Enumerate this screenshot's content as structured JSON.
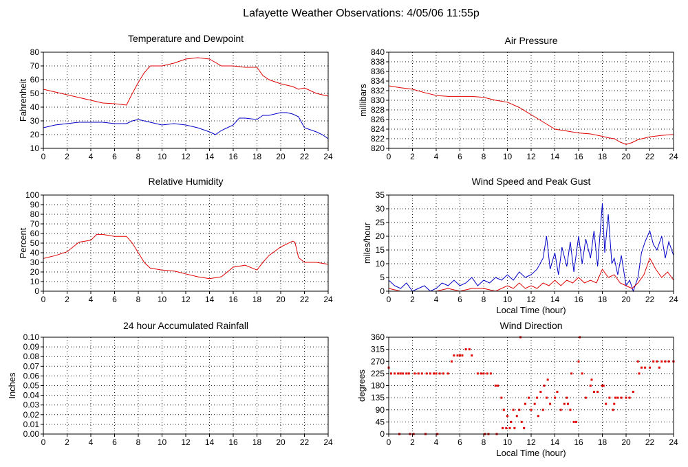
{
  "title": "Lafayette Weather Observations: 4/05/06 11:55p",
  "colors": {
    "red": "#e00000",
    "blue": "#0000c8"
  },
  "chart_data": [
    {
      "id": "temp",
      "type": "line",
      "title": "Temperature and Dewpoint",
      "xlabel": "",
      "ylabel": "Fahrenheit",
      "xlim": [
        0,
        24
      ],
      "ylim": [
        10,
        80
      ],
      "xticks": [
        0,
        2,
        4,
        6,
        8,
        10,
        12,
        14,
        16,
        18,
        20,
        22,
        24
      ],
      "yticks": [
        10,
        20,
        30,
        40,
        50,
        60,
        70,
        80
      ],
      "grid": true,
      "series": [
        {
          "color": "red",
          "x": [
            0,
            1,
            2,
            3,
            4,
            5,
            6,
            7,
            7.5,
            8,
            8.5,
            9,
            10,
            11,
            12,
            13,
            14,
            15,
            16,
            17,
            18,
            18.5,
            19,
            20,
            21,
            21.5,
            22,
            23,
            24
          ],
          "y": [
            53,
            51,
            49,
            47,
            45,
            43,
            42.5,
            41.5,
            50,
            58,
            65,
            70,
            70,
            72,
            75,
            76,
            75,
            70,
            70,
            69,
            69,
            63,
            60,
            57,
            55,
            53,
            54,
            50,
            48
          ]
        },
        {
          "color": "blue",
          "x": [
            0,
            1,
            2,
            3,
            4,
            5,
            6,
            7,
            7.5,
            8,
            8.5,
            9,
            10,
            11,
            12,
            13,
            14,
            14.5,
            15,
            15.5,
            16,
            16.5,
            17,
            18,
            18.5,
            19,
            20,
            20.5,
            21,
            21.5,
            22,
            23,
            23.5,
            24
          ],
          "y": [
            25,
            27,
            28,
            29,
            29,
            29,
            28,
            28,
            30,
            31,
            30,
            29,
            27,
            28,
            27,
            25,
            22,
            20,
            23,
            25,
            27,
            32,
            32,
            31,
            34,
            34,
            36,
            36,
            35,
            33,
            25,
            22,
            20,
            17
          ]
        }
      ]
    },
    {
      "id": "pressure",
      "type": "line",
      "title": "Air Pressure",
      "xlabel": "",
      "ylabel": "millibars",
      "xlim": [
        0,
        24
      ],
      "ylim": [
        820,
        840
      ],
      "xticks": [
        0,
        2,
        4,
        6,
        8,
        10,
        12,
        14,
        16,
        18,
        20,
        22,
        24
      ],
      "yticks": [
        820,
        822,
        824,
        826,
        828,
        830,
        832,
        834,
        836,
        838,
        840
      ],
      "grid": true,
      "series": [
        {
          "color": "red",
          "x": [
            0,
            1,
            2,
            3,
            4,
            5,
            6,
            7,
            8,
            9,
            10,
            11,
            12,
            13,
            14,
            15,
            16,
            17,
            18,
            18.5,
            19,
            19.5,
            20,
            20.5,
            21,
            22,
            23,
            24
          ],
          "y": [
            833,
            832.6,
            832.3,
            831.6,
            831,
            830.8,
            830.8,
            830.8,
            830.6,
            830,
            829.6,
            828.5,
            827,
            825.5,
            824,
            823.6,
            823.2,
            823,
            822.5,
            822.2,
            822,
            821.3,
            820.8,
            821.2,
            821.8,
            822.4,
            822.7,
            822.9
          ]
        }
      ]
    },
    {
      "id": "humidity",
      "type": "line",
      "title": "Relative Humidity",
      "xlabel": "",
      "ylabel": "Percent",
      "xlim": [
        0,
        24
      ],
      "ylim": [
        0,
        100
      ],
      "xticks": [
        0,
        2,
        4,
        6,
        8,
        10,
        12,
        14,
        16,
        18,
        20,
        22,
        24
      ],
      "yticks": [
        0,
        10,
        20,
        30,
        40,
        50,
        60,
        70,
        80,
        90,
        100
      ],
      "grid": true,
      "series": [
        {
          "color": "red",
          "x": [
            0,
            1,
            2,
            3,
            4,
            4.5,
            5,
            6,
            7,
            7.5,
            8,
            8.5,
            9,
            10,
            11,
            12,
            13,
            14,
            15,
            15.5,
            16,
            17,
            18,
            18.5,
            19,
            20,
            21,
            21.2,
            21.5,
            22,
            23,
            24
          ],
          "y": [
            34,
            37,
            41,
            51,
            53,
            59,
            59,
            57,
            57,
            50,
            40,
            30,
            24,
            22,
            21,
            18,
            15,
            13,
            15,
            20,
            25,
            27,
            22,
            30,
            37,
            46,
            52,
            51,
            35,
            30,
            30,
            28
          ]
        }
      ]
    },
    {
      "id": "wind",
      "type": "line",
      "title": "Wind Speed and Peak Gust",
      "xlabel": "Local Time (hour)",
      "ylabel": "miles/hour",
      "xlim": [
        0,
        24
      ],
      "ylim": [
        0,
        35
      ],
      "xticks": [
        0,
        2,
        4,
        6,
        8,
        10,
        12,
        14,
        16,
        18,
        20,
        22,
        24
      ],
      "yticks": [
        0,
        5,
        10,
        15,
        20,
        25,
        30,
        35
      ],
      "grid": true,
      "series": [
        {
          "color": "blue",
          "x": [
            0,
            0.5,
            1,
            1.5,
            2,
            2.5,
            3,
            3.5,
            4,
            4.5,
            5,
            5.5,
            6,
            6.5,
            7,
            7.5,
            8,
            8.5,
            9,
            9.5,
            10,
            10.5,
            11,
            11.5,
            12,
            12.5,
            13,
            13.3,
            13.6,
            14,
            14.3,
            14.6,
            15,
            15.3,
            15.6,
            16,
            16.3,
            16.6,
            17,
            17.3,
            17.6,
            18,
            18.2,
            18.5,
            18.8,
            19,
            19.3,
            19.6,
            20,
            20.3,
            20.6,
            21,
            21.3,
            21.6,
            22,
            22.3,
            22.6,
            23,
            23.3,
            23.6,
            24
          ],
          "y": [
            4,
            2,
            1,
            3,
            0,
            1,
            2,
            0,
            1,
            3,
            2,
            4,
            2,
            3,
            5,
            2,
            4,
            3,
            5,
            4,
            6,
            4,
            7,
            5,
            6,
            8,
            12,
            20,
            8,
            14,
            6,
            16,
            9,
            18,
            7,
            20,
            10,
            19,
            12,
            22,
            9,
            32,
            14,
            28,
            10,
            12,
            6,
            13,
            2,
            4,
            0,
            5,
            14,
            18,
            22,
            17,
            15,
            20,
            12,
            18,
            13
          ]
        },
        {
          "color": "red",
          "x": [
            0,
            1,
            2,
            3,
            4,
            5,
            6,
            7,
            8,
            9,
            10,
            10.5,
            11,
            11.5,
            12,
            12.5,
            13,
            13.5,
            14,
            14.5,
            15,
            15.5,
            16,
            16.5,
            17,
            17.5,
            18,
            18.5,
            19,
            19.5,
            20,
            20.5,
            21,
            21.5,
            22,
            22.5,
            23,
            23.5,
            24
          ],
          "y": [
            1,
            0,
            0,
            0,
            0,
            1,
            0,
            1,
            1,
            0,
            2,
            1,
            3,
            1,
            2,
            1,
            3,
            2,
            4,
            2,
            4,
            3,
            5,
            3,
            4,
            3,
            8,
            5,
            6,
            3,
            2,
            1,
            3,
            6,
            12,
            8,
            5,
            7,
            4
          ]
        }
      ]
    },
    {
      "id": "rain",
      "type": "line",
      "title": "24 hour Accumulated Rainfall",
      "xlabel": "",
      "ylabel": "Inches",
      "xlim": [
        0,
        24
      ],
      "ylim": [
        0,
        0.1
      ],
      "xticks": [
        0,
        2,
        4,
        6,
        8,
        10,
        12,
        14,
        16,
        18,
        20,
        22,
        24
      ],
      "yticks": [
        "0.00",
        "0.01",
        "0.02",
        "0.03",
        "0.04",
        "0.05",
        "0.06",
        "0.07",
        "0.08",
        "0.09",
        "0.10"
      ],
      "grid": true,
      "series": [
        {
          "color": "red",
          "x": [
            0,
            24
          ],
          "y": [
            0,
            0
          ]
        }
      ]
    },
    {
      "id": "direction",
      "type": "scatter",
      "title": "Wind Direction",
      "xlabel": "Local Time (hour)",
      "ylabel": "degrees",
      "xlim": [
        0,
        24
      ],
      "ylim": [
        0,
        360
      ],
      "xticks": [
        0,
        2,
        4,
        6,
        8,
        10,
        12,
        14,
        16,
        18,
        20,
        22,
        24
      ],
      "yticks": [
        0,
        45,
        90,
        135,
        180,
        225,
        270,
        315,
        360
      ],
      "grid": true,
      "series": [
        {
          "color": "red",
          "x": [
            0,
            0.2,
            0.5,
            0.8,
            1,
            1.2,
            1.5,
            1.7,
            2.2,
            2.5,
            2.8,
            3.2,
            3.5,
            3.8,
            4,
            4.3,
            4.6,
            5,
            5.3,
            5.5,
            5.8,
            6,
            6.2,
            6.5,
            6.8,
            7,
            7.5,
            7.8,
            8,
            8.3,
            8.6,
            9,
            9.2,
            9.5,
            9.7,
            10,
            10.3,
            10.5,
            10.8,
            11,
            11.2,
            11.5,
            11.8,
            12,
            12.3,
            12.5,
            12.8,
            13,
            13.3,
            13.6,
            14,
            14.2,
            14.5,
            14.8,
            15,
            15.3,
            15.6,
            16,
            16.3,
            16.6,
            17,
            17.3,
            17.6,
            18,
            18.3,
            18.6,
            19,
            19.3,
            19.6,
            20,
            20.3,
            20.6,
            21,
            21.3,
            21.6,
            22,
            22.3,
            22.6,
            23,
            23.3,
            23.6,
            24,
            0.9,
            1.8,
            2.1,
            3.1,
            4.1,
            8.1,
            8.4,
            9.1,
            9.6,
            9.9,
            10.2,
            10.6,
            11.1,
            11.4,
            12.6,
            13.1,
            13.4,
            15.1,
            15.4,
            15.8,
            16.1,
            17.1,
            18.1,
            18.9,
            19.1,
            21.1,
            22.8
          ],
          "y": [
            247,
            225,
            225,
            225,
            225,
            225,
            225,
            225,
            225,
            225,
            225,
            225,
            225,
            225,
            225,
            225,
            225,
            225,
            270,
            292,
            292,
            292,
            292,
            315,
            315,
            292,
            225,
            225,
            225,
            225,
            225,
            180,
            180,
            135,
            90,
            67,
            45,
            90,
            67,
            90,
            45,
            112,
            135,
            90,
            112,
            135,
            157,
            90,
            135,
            112,
            135,
            157,
            90,
            112,
            135,
            90,
            45,
            270,
            225,
            135,
            180,
            157,
            157,
            180,
            112,
            135,
            112,
            135,
            135,
            135,
            135,
            157,
            270,
            247,
            247,
            247,
            270,
            270,
            270,
            270,
            270,
            270,
            0,
            0,
            0,
            0,
            0,
            0,
            0,
            0,
            22,
            22,
            22,
            22,
            360,
            22,
            67,
            180,
            202,
            112,
            225,
            45,
            360,
            202,
            180,
            90,
            135,
            225,
            247
          ]
        }
      ]
    }
  ]
}
